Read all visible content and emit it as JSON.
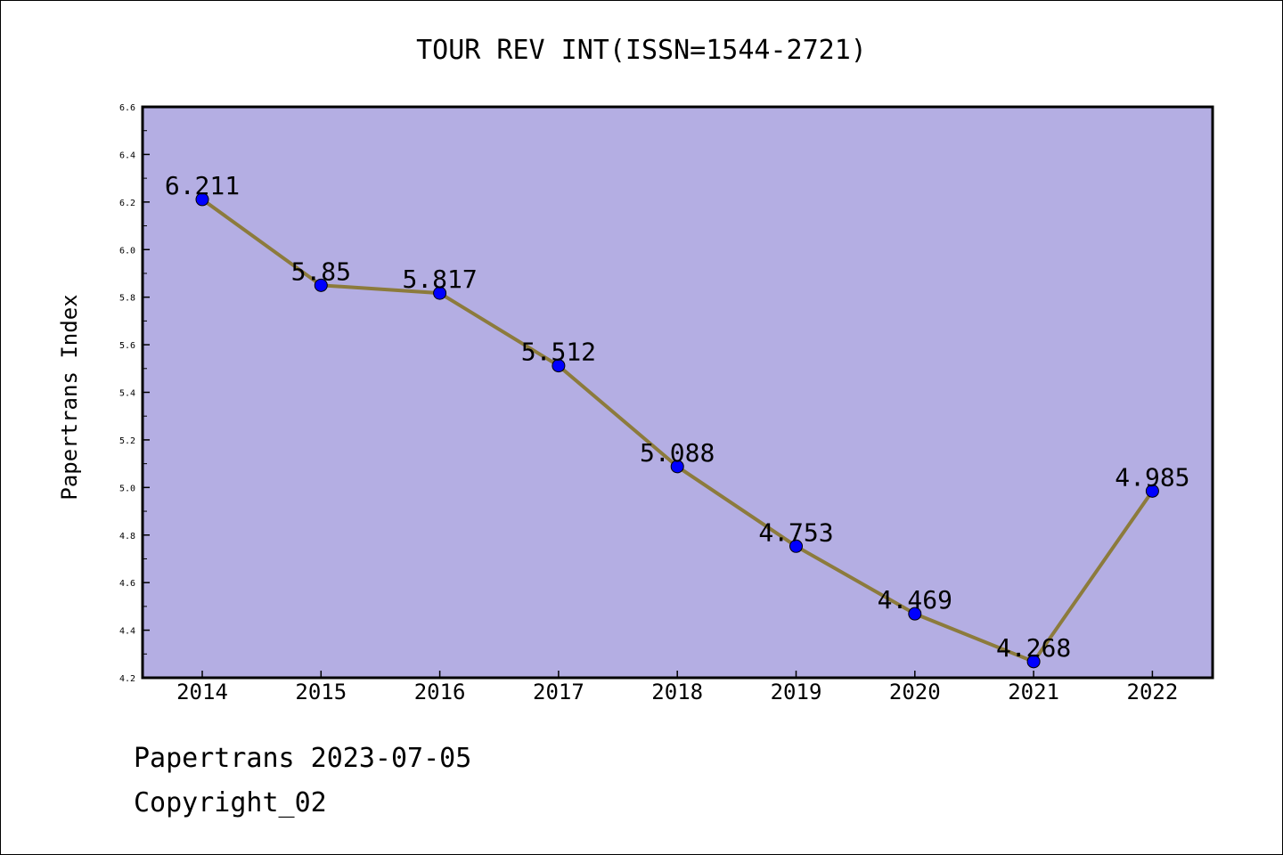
{
  "chart_data": {
    "type": "line",
    "title": "TOUR REV INT(ISSN=1544-2721)",
    "ylabel": "Papertrans Index",
    "xlabel": "",
    "categories": [
      "2014",
      "2015",
      "2016",
      "2017",
      "2018",
      "2019",
      "2020",
      "2021",
      "2022"
    ],
    "series": [
      {
        "values": [
          6.211,
          5.85,
          5.817,
          5.512,
          5.088,
          4.753,
          4.469,
          4.268,
          4.985
        ]
      }
    ],
    "data_labels": [
      "6.211",
      "5.85",
      "5.817",
      "5.512",
      "5.088",
      "4.753",
      "4.469",
      "4.268",
      "4.985"
    ],
    "ylim": [
      4.2,
      6.6
    ],
    "yticks": [
      "4.2",
      "4.4",
      "4.6",
      "4.8",
      "5.0",
      "5.2",
      "5.4",
      "5.6",
      "5.8",
      "6.0",
      "6.2",
      "6.4",
      "6.6"
    ],
    "grid": false,
    "legend": "none",
    "colors": {
      "plot_bg": "#b4aee3",
      "line": "#8c7b3c",
      "marker": "#0000ff"
    }
  },
  "footer": {
    "line1": "Papertrans 2023-07-05",
    "line2": "Copyright_02"
  }
}
